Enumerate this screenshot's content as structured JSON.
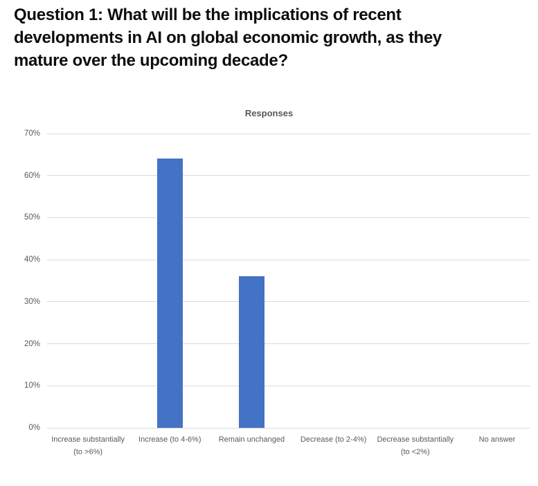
{
  "heading": {
    "text": "Question 1: What will be the implications of recent developments in AI on global economic growth, as they mature over the upcoming decade?",
    "lines": [
      "Question 1: What will be the implications of recent",
      "developments in AI on global economic growth, as they",
      "mature over the upcoming decade?"
    ]
  },
  "chart_data": {
    "type": "bar",
    "title": "Responses",
    "categories": [
      "Increase substantially (to >6%)",
      "Increase (to 4-6%)",
      "Remain unchanged",
      "Decrease (to 2-4%)",
      "Decrease substantially (to <2%)",
      "No answer"
    ],
    "values": [
      0,
      64,
      36,
      0,
      0,
      0
    ],
    "unit": "%",
    "xlabel": "",
    "ylabel": "",
    "ylim": [
      0,
      70
    ],
    "ytick_step": 10,
    "ytick_labels": [
      "0%",
      "10%",
      "20%",
      "30%",
      "40%",
      "50%",
      "60%",
      "70%"
    ],
    "grid": true,
    "legend": false,
    "bar_color": "#4472C4",
    "gridline_color": "#D9D9D9",
    "axis_text_color": "#595959",
    "title_color": "#595959"
  }
}
